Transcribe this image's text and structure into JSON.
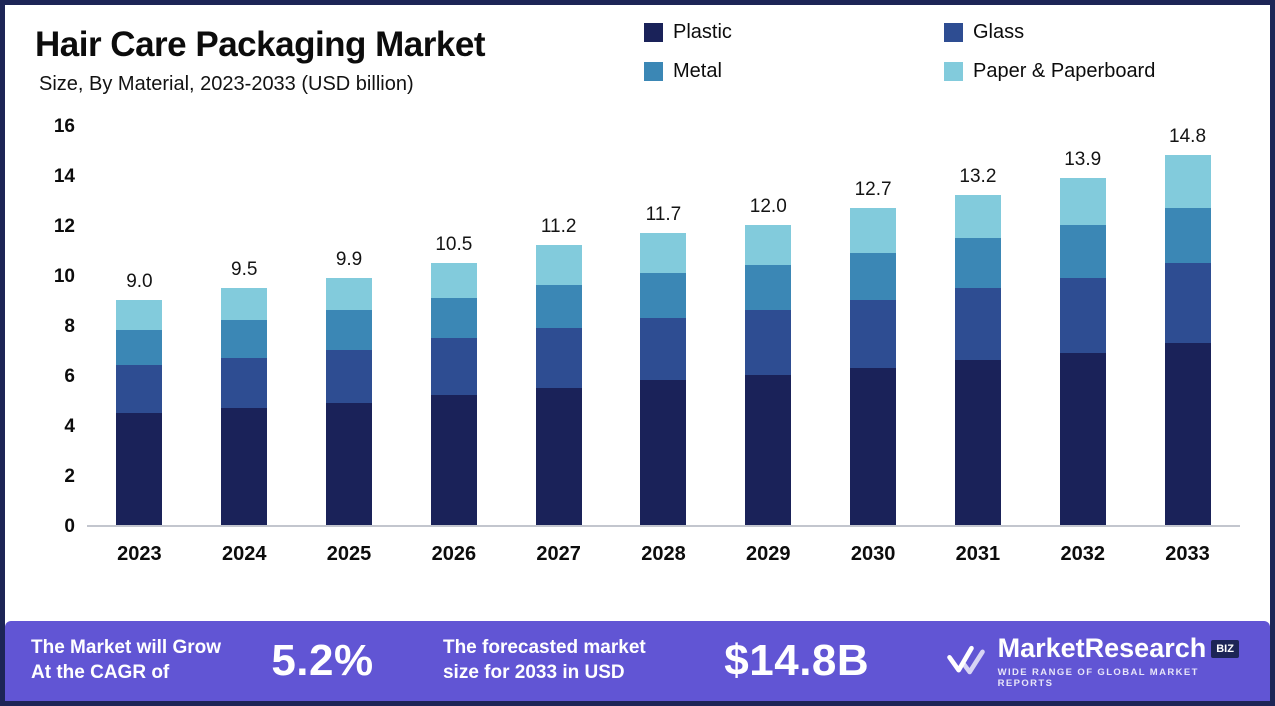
{
  "header": {
    "title": "Hair Care Packaging Market",
    "subtitle": "Size, By Material, 2023-2033 (USD billion)"
  },
  "chart_data": {
    "type": "bar",
    "subtype": "stacked-vertical",
    "categories": [
      "2023",
      "2024",
      "2025",
      "2026",
      "2027",
      "2028",
      "2029",
      "2030",
      "2031",
      "2032",
      "2033"
    ],
    "series": [
      {
        "name": "Plastic",
        "color": "#1a2259",
        "values": [
          4.5,
          4.7,
          4.9,
          5.2,
          5.5,
          5.8,
          6.0,
          6.3,
          6.6,
          6.9,
          7.3
        ]
      },
      {
        "name": "Glass",
        "color": "#2e4d92",
        "values": [
          1.9,
          2.0,
          2.1,
          2.3,
          2.4,
          2.5,
          2.6,
          2.7,
          2.9,
          3.0,
          3.2
        ]
      },
      {
        "name": "Metal",
        "color": "#3b87b5",
        "values": [
          1.4,
          1.5,
          1.6,
          1.6,
          1.7,
          1.8,
          1.8,
          1.9,
          2.0,
          2.1,
          2.2
        ]
      },
      {
        "name": "Paper & Paperboard",
        "color": "#82cbdc",
        "values": [
          1.2,
          1.3,
          1.3,
          1.4,
          1.6,
          1.6,
          1.6,
          1.8,
          1.7,
          1.9,
          2.1
        ]
      }
    ],
    "totals_labels": [
      "9.0",
      "9.5",
      "9.9",
      "10.5",
      "11.2",
      "11.7",
      "12.0",
      "12.7",
      "13.2",
      "13.9",
      "14.8"
    ],
    "title": "Hair Care Packaging Market",
    "subtitle": "Size, By Material, 2023-2033 (USD billion)",
    "xlabel": "",
    "ylabel": "",
    "ylim": [
      0,
      16
    ],
    "yticks": [
      0,
      2,
      4,
      6,
      8,
      10,
      12,
      14,
      16
    ],
    "grid": false,
    "legend_position": "top-right",
    "unit": "USD billion"
  },
  "banner": {
    "background": "#6155d4",
    "cagr_line1": "The Market will Grow",
    "cagr_line2": "At the CAGR of",
    "cagr_value": "5.2%",
    "forecast_line1": "The forecasted market",
    "forecast_line2": "size for 2033 in USD",
    "forecast_value": "$14.8B",
    "logo": {
      "brand": "MarketResearch",
      "suffix": "BIZ",
      "tagline": "WIDE RANGE OF GLOBAL MARKET REPORTS"
    }
  },
  "colors": {
    "frame_border": "#1d2556",
    "axis_line": "#c3c6ce"
  }
}
